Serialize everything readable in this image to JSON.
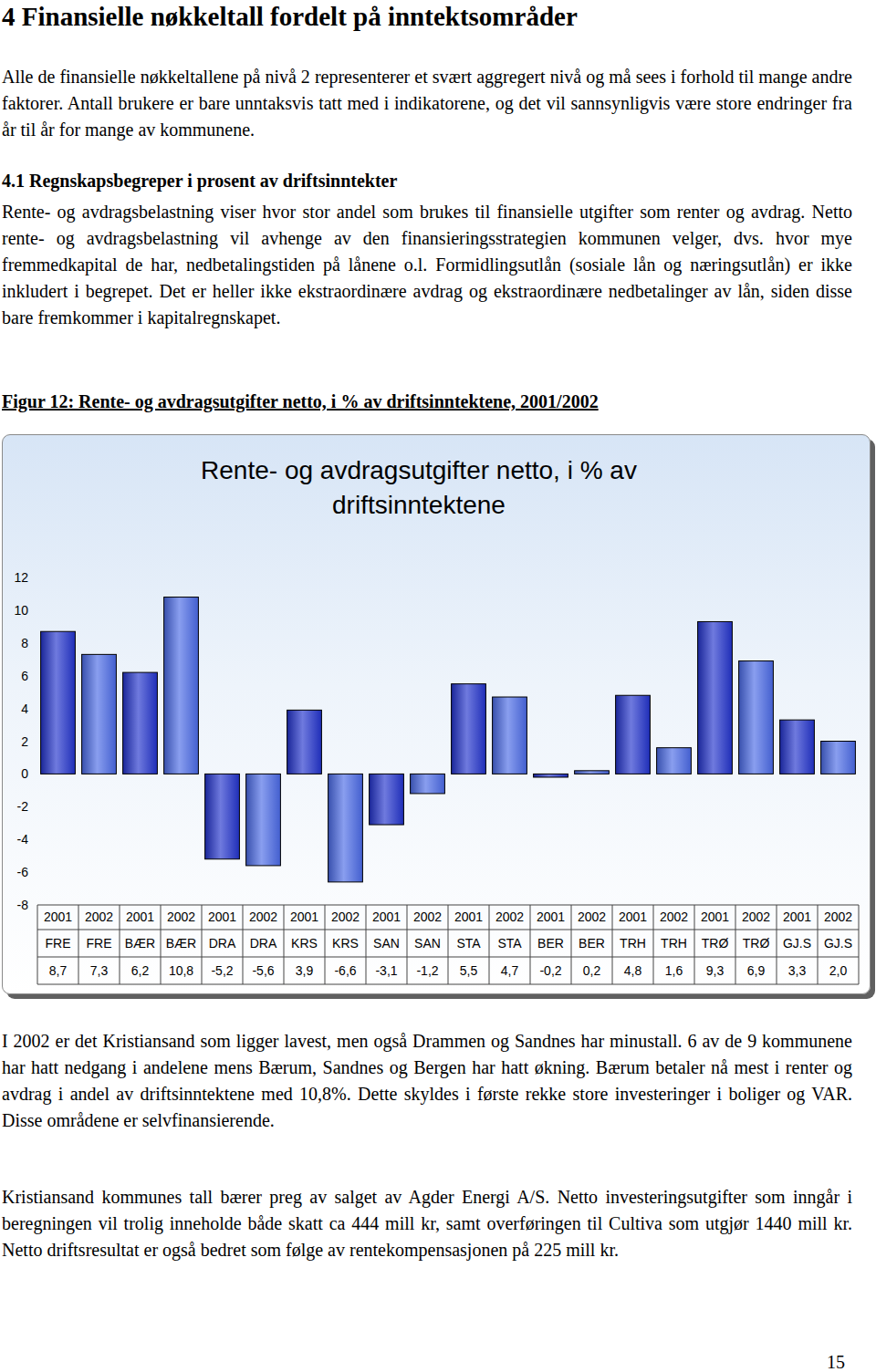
{
  "heading": "4 Finansielle nøkkeltall fordelt på inntektsområder",
  "intro": "Alle de finansielle nøkkeltallene på nivå 2 representerer et svært aggregert nivå og må sees i forhold til mange andre faktorer. Antall brukere er bare unntaksvis tatt med i indikatorene, og det vil sannsynligvis være store endringer fra år til år for mange av kommunene.",
  "section_heading": "4.1 Regnskapsbegreper i prosent av driftsinntekter",
  "section_text": "Rente- og avdragsbelastning viser hvor stor andel som brukes til finansielle utgifter som renter og avdrag. Netto rente- og avdragsbelastning vil avhenge av den finansieringsstrategien kommunen velger, dvs. hvor mye fremmedkapital de har, nedbetalingstiden på lånene o.l. Formidlingsutlån (sosiale lån og næringsutlån) er ikke inkludert i begrepet. Det er heller ikke ekstraordinære avdrag og ekstraordinære nedbetalinger av lån, siden disse bare fremkommer i kapitalregnskapet.",
  "figure_caption": "Figur 12: Rente- og avdragsutgifter netto, i % av driftsinntektene, 2001/2002",
  "chart_data": {
    "type": "bar",
    "title": "Rente- og avdragsutgifter netto, i % av driftsinntektene",
    "categories": [
      "2001",
      "2002",
      "2001",
      "2002",
      "2001",
      "2002",
      "2001",
      "2002",
      "2001",
      "2002",
      "2001",
      "2002",
      "2001",
      "2002",
      "2001",
      "2002",
      "2001",
      "2002",
      "2001",
      "2002"
    ],
    "category_groups": [
      "FRE",
      "FRE",
      "BÆR",
      "BÆR",
      "DRA",
      "DRA",
      "KRS",
      "KRS",
      "SAN",
      "SAN",
      "STA",
      "STA",
      "BER",
      "BER",
      "TRH",
      "TRH",
      "TRØ",
      "TRØ",
      "GJ.S",
      "GJ.S"
    ],
    "values": [
      8.7,
      7.3,
      6.2,
      10.8,
      -5.2,
      -5.6,
      3.9,
      -6.6,
      -3.1,
      -1.2,
      5.5,
      4.7,
      -0.2,
      0.2,
      4.8,
      1.6,
      9.3,
      6.9,
      3.3,
      2.0
    ],
    "value_labels": [
      "8,7",
      "7,3",
      "6,2",
      "10,8",
      "-5,2",
      "-5,6",
      "3,9",
      "-6,6",
      "-3,1",
      "-1,2",
      "5,5",
      "4,7",
      "-0,2",
      "0,2",
      "4,8",
      "1,6",
      "9,3",
      "6,9",
      "3,3",
      "2,0"
    ],
    "data_labels": true,
    "colors": [
      "#2233cc",
      "#4a6ae6",
      "#2233cc",
      "#4a6ae6",
      "#2233cc",
      "#4a6ae6",
      "#2233cc",
      "#4a6ae6",
      "#2233cc",
      "#4a6ae6",
      "#2233cc",
      "#4a6ae6",
      "#2233cc",
      "#4a6ae6",
      "#2233cc",
      "#4a6ae6",
      "#2233cc",
      "#4a6ae6",
      "#2233cc",
      "#4a6ae6"
    ],
    "ylim": [
      -8,
      12
    ],
    "yticks": [
      -8,
      -6,
      -4,
      -2,
      0,
      2,
      4,
      6,
      8,
      10,
      12
    ],
    "grid": false
  },
  "comments": [
    "I 2002 er det Kristiansand som ligger lavest, men også Drammen og Sandnes har minustall. 6 av de 9 kommunene har hatt nedgang i andelene mens Bærum, Sandnes og Bergen har hatt økning. Bærum betaler nå mest i renter og avdrag i andel av driftsinntektene med 10,8%. Dette skyldes i første rekke store investeringer i boliger og VAR. Disse områdene er selvfinansierende.",
    "Kristiansand kommunes tall bærer preg av salget av Agder Energi A/S. Netto investeringsutgifter som inngår i beregningen vil trolig inneholde både skatt ca 444 mill kr, samt overføringen til Cultiva som utgjør 1440 mill kr. Netto driftsresultat er også bedret som følge av rentekompensasjonen på 225 mill kr."
  ],
  "page_number": 15
}
